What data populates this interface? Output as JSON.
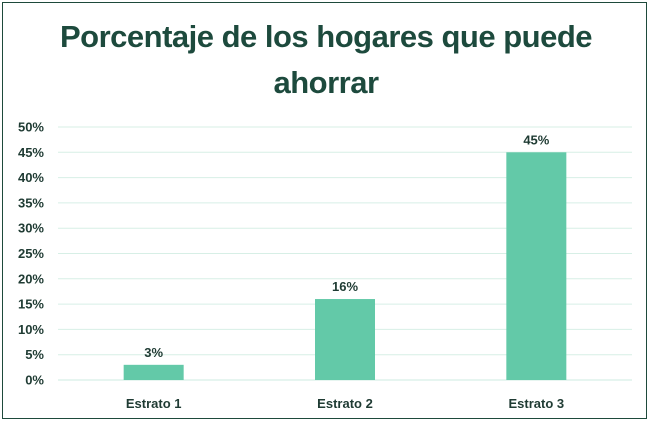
{
  "chart_data": {
    "type": "bar",
    "title": "Porcentaje de los hogares que puede ahorrar",
    "categories": [
      "Estrato 1",
      "Estrato 2",
      "Estrato 3"
    ],
    "values": [
      3,
      16,
      45
    ],
    "value_labels": [
      "3%",
      "16%",
      "45%"
    ],
    "y_ticks": [
      "0%",
      "5%",
      "10%",
      "15%",
      "20%",
      "25%",
      "30%",
      "35%",
      "40%",
      "45%",
      "50%"
    ],
    "ylim": [
      0,
      50
    ],
    "ystep": 5,
    "xlabel": "",
    "ylabel": "",
    "grid": true,
    "legend": "none",
    "colors": {
      "bar": "#63c9a8",
      "grid": "#d7efe6",
      "title": "#1d4a3d",
      "text": "#1f3b33",
      "border": "#1e4a3b"
    }
  }
}
